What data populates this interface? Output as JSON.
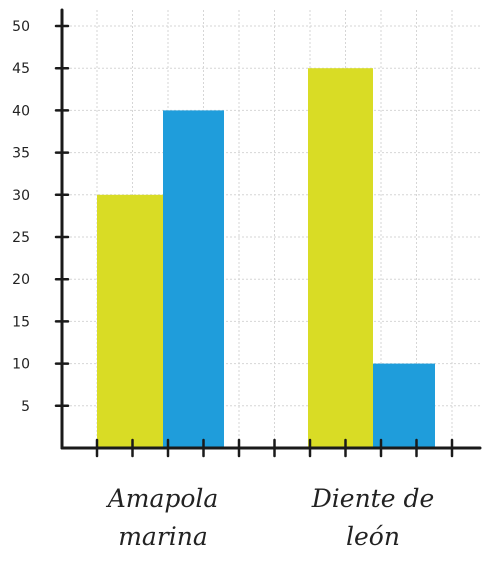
{
  "chart_data": {
    "type": "bar",
    "categories": [
      "Amapola marina",
      "Diente de león"
    ],
    "category_label_lines": [
      [
        "Amapola",
        "marina"
      ],
      [
        "Diente de",
        "león"
      ]
    ],
    "series": [
      {
        "values": [
          30,
          45
        ],
        "color": "#d9dc25"
      },
      {
        "values": [
          40,
          10
        ],
        "color": "#1f9ddb"
      }
    ],
    "ylim": [
      0,
      50
    ],
    "yticks": [
      5,
      10,
      15,
      20,
      25,
      30,
      35,
      40,
      45,
      50
    ],
    "title": "",
    "xlabel": "",
    "ylabel": "",
    "grid": true,
    "legend": "none"
  }
}
